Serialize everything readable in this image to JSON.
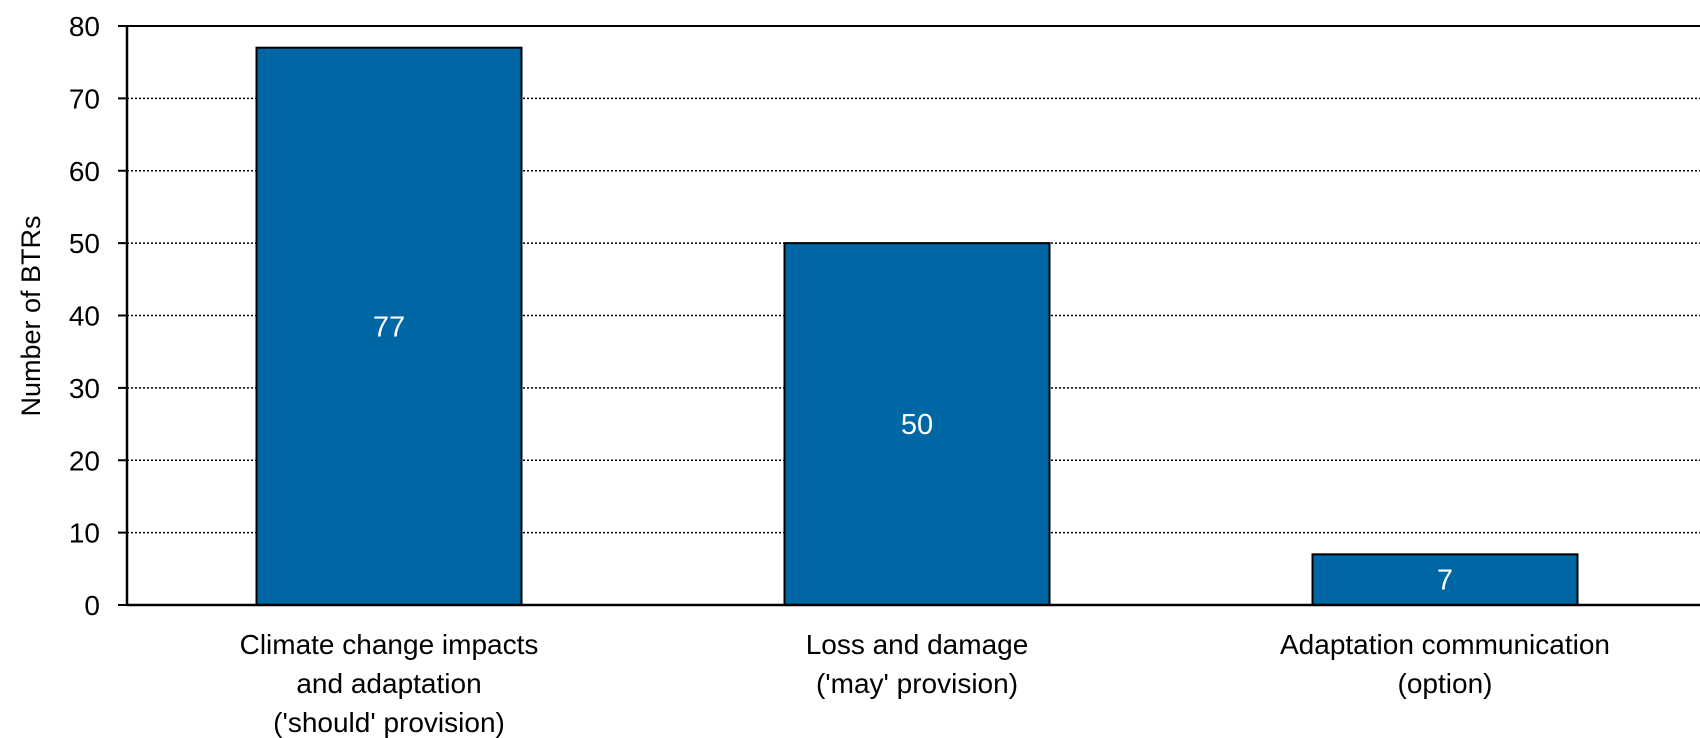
{
  "chart_data": {
    "type": "bar",
    "title": "",
    "xlabel": "",
    "ylabel": "Number of BTRs",
    "ylim": [
      0,
      80
    ],
    "yticks": [
      0,
      10,
      20,
      30,
      40,
      50,
      60,
      70,
      80
    ],
    "grid": true,
    "categories": [
      [
        "Climate change impacts",
        "and adaptation",
        "('should' provision)"
      ],
      [
        "Loss and damage",
        "('may' provision)"
      ],
      [
        "Adaptation communication",
        "(option)"
      ]
    ],
    "values": [
      77,
      50,
      7
    ],
    "data_labels": [
      "77",
      "50",
      "7"
    ],
    "colors": {
      "bar": "#0067a5",
      "bar_label": "#ffffff"
    }
  }
}
